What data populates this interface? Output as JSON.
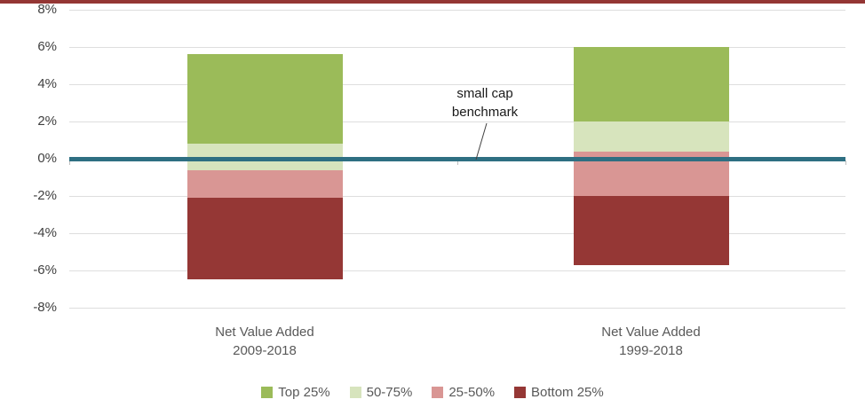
{
  "page": {
    "background": "#ffffff",
    "top_border_color": "#943634",
    "axis_text_color": "#404040",
    "label_text_color": "#595959",
    "grid_color": "#dedede"
  },
  "chart_data": {
    "type": "bar",
    "subtype": "stacked-range-column",
    "title": "",
    "xlabel": "",
    "ylabel": "",
    "categories": [
      "Net Value Added\n2009-2018",
      "Net Value Added\n1999-2018"
    ],
    "series": [
      {
        "name": "Top 25%",
        "color": "#9bbb59",
        "ranges": [
          [
            0.8,
            5.6
          ],
          [
            2.0,
            6.0
          ]
        ]
      },
      {
        "name": "50-75%",
        "color": "#d7e4bd",
        "ranges": [
          [
            -0.6,
            0.8
          ],
          [
            0.4,
            2.0
          ]
        ]
      },
      {
        "name": "25-50%",
        "color": "#d99694",
        "ranges": [
          [
            -2.1,
            -0.6
          ],
          [
            -2.0,
            0.4
          ]
        ]
      },
      {
        "name": "Bottom 25%",
        "color": "#953735",
        "ranges": [
          [
            -6.5,
            -2.1
          ],
          [
            -5.7,
            -2.0
          ]
        ]
      }
    ],
    "benchmark": {
      "label": "small cap\nbenchmark",
      "value": 0,
      "color": "#2e6f82"
    },
    "y_axis": {
      "ylim": [
        -8,
        8
      ],
      "ticks": [
        8,
        6,
        4,
        2,
        0,
        -2,
        -4,
        -6,
        -8
      ],
      "tick_labels": [
        "8%",
        "6%",
        "4%",
        "2%",
        "0%",
        "-2%",
        "-4%",
        "-6%",
        "-8%"
      ],
      "grid": true
    },
    "legend": {
      "position": "bottom",
      "entries": [
        "Top 25%",
        "50-75%",
        "25-50%",
        "Bottom 25%"
      ]
    }
  }
}
